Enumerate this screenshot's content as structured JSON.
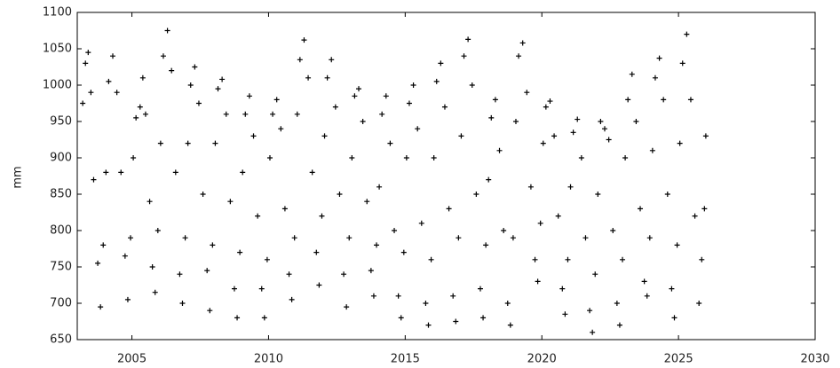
{
  "chart_data": {
    "type": "scatter",
    "ylabel": "mm",
    "color": "#000000",
    "marker": "+",
    "xlim": [
      2003,
      2030
    ],
    "xticks": [
      2005,
      2010,
      2015,
      2020,
      2025,
      2030
    ],
    "ylim": [
      650,
      1100
    ],
    "yticks": [
      650,
      700,
      750,
      800,
      850,
      900,
      950,
      1000,
      1050,
      1100
    ],
    "grid": false,
    "x": [
      2003.2,
      2003.3,
      2003.4,
      2003.5,
      2003.6,
      2003.75,
      2003.85,
      2003.95,
      2004.05,
      2004.15,
      2004.3,
      2004.45,
      2004.6,
      2004.75,
      2004.85,
      2004.95,
      2005.05,
      2005.15,
      2005.3,
      2005.4,
      2005.5,
      2005.65,
      2005.75,
      2005.85,
      2005.95,
      2006.05,
      2006.15,
      2006.3,
      2006.45,
      2006.6,
      2006.75,
      2006.85,
      2006.95,
      2007.05,
      2007.15,
      2007.3,
      2007.45,
      2007.6,
      2007.75,
      2007.85,
      2007.95,
      2008.05,
      2008.15,
      2008.3,
      2008.45,
      2008.6,
      2008.75,
      2008.85,
      2008.95,
      2009.05,
      2009.15,
      2009.3,
      2009.45,
      2009.6,
      2009.75,
      2009.85,
      2009.95,
      2010.05,
      2010.15,
      2010.3,
      2010.45,
      2010.6,
      2010.75,
      2010.85,
      2010.95,
      2011.05,
      2011.15,
      2011.3,
      2011.45,
      2011.6,
      2011.75,
      2011.85,
      2011.95,
      2012.05,
      2012.15,
      2012.3,
      2012.45,
      2012.6,
      2012.75,
      2012.85,
      2012.95,
      2013.05,
      2013.15,
      2013.3,
      2013.45,
      2013.6,
      2013.75,
      2013.85,
      2013.95,
      2014.05,
      2014.15,
      2014.3,
      2014.45,
      2014.6,
      2014.75,
      2014.85,
      2014.95,
      2015.05,
      2015.15,
      2015.3,
      2015.45,
      2015.6,
      2015.75,
      2015.85,
      2015.95,
      2016.05,
      2016.15,
      2016.3,
      2016.45,
      2016.6,
      2016.75,
      2016.85,
      2016.95,
      2017.05,
      2017.15,
      2017.3,
      2017.45,
      2017.6,
      2017.75,
      2017.85,
      2017.95,
      2018.05,
      2018.15,
      2018.3,
      2018.45,
      2018.6,
      2018.75,
      2018.85,
      2018.95,
      2019.05,
      2019.15,
      2019.3,
      2019.45,
      2019.6,
      2019.75,
      2019.85,
      2019.95,
      2020.05,
      2020.15,
      2020.3,
      2020.45,
      2020.6,
      2020.75,
      2020.85,
      2020.95,
      2021.05,
      2021.15,
      2021.3,
      2021.45,
      2021.6,
      2021.75,
      2021.85,
      2021.95,
      2022.05,
      2022.15,
      2022.3,
      2022.45,
      2022.6,
      2022.75,
      2022.85,
      2022.95,
      2023.05,
      2023.15,
      2023.3,
      2023.45,
      2023.6,
      2023.75,
      2023.85,
      2023.95,
      2024.05,
      2024.15,
      2024.3,
      2024.45,
      2024.6,
      2024.75,
      2024.85,
      2024.95,
      2025.05,
      2025.15,
      2025.3,
      2025.45,
      2025.6,
      2025.75,
      2025.85,
      2025.95,
      2026.0
    ],
    "values": [
      975,
      1030,
      1045,
      990,
      870,
      755,
      695,
      780,
      880,
      1005,
      1040,
      990,
      880,
      765,
      705,
      790,
      900,
      955,
      970,
      1010,
      960,
      840,
      750,
      715,
      800,
      920,
      1040,
      1075,
      1020,
      880,
      740,
      700,
      790,
      920,
      1000,
      1025,
      975,
      850,
      745,
      690,
      780,
      920,
      995,
      1008,
      960,
      840,
      720,
      680,
      770,
      880,
      960,
      985,
      930,
      820,
      720,
      680,
      760,
      900,
      960,
      980,
      940,
      830,
      740,
      705,
      790,
      960,
      1035,
      1062,
      1010,
      880,
      770,
      725,
      820,
      930,
      1010,
      1035,
      970,
      850,
      740,
      695,
      790,
      900,
      985,
      995,
      950,
      840,
      745,
      710,
      780,
      860,
      960,
      985,
      920,
      800,
      710,
      680,
      770,
      900,
      975,
      1000,
      940,
      810,
      700,
      670,
      760,
      900,
      1005,
      1030,
      970,
      830,
      710,
      675,
      790,
      930,
      1040,
      1063,
      1000,
      850,
      720,
      680,
      780,
      870,
      955,
      980,
      910,
      800,
      700,
      670,
      790,
      950,
      1040,
      1058,
      990,
      860,
      760,
      730,
      810,
      920,
      970,
      978,
      930,
      820,
      720,
      685,
      760,
      860,
      935,
      953,
      900,
      790,
      690,
      660,
      740,
      850,
      950,
      940,
      925,
      800,
      700,
      670,
      760,
      900,
      980,
      1015,
      950,
      830,
      730,
      710,
      790,
      910,
      1010,
      1037,
      980,
      850,
      720,
      680,
      780,
      920,
      1030,
      1070,
      980,
      820,
      700,
      760,
      830,
      930
    ]
  }
}
